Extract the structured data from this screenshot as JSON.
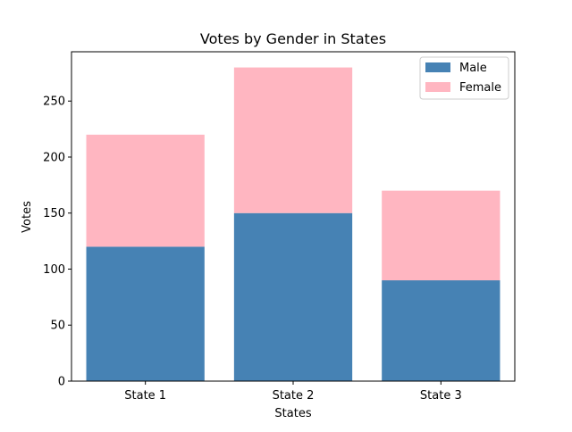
{
  "chart_data": {
    "type": "bar",
    "stacked": true,
    "title": "Votes by Gender in States",
    "xlabel": "States",
    "ylabel": "Votes",
    "categories": [
      "State 1",
      "State 2",
      "State 3"
    ],
    "series": [
      {
        "name": "Male",
        "values": [
          120,
          150,
          90
        ],
        "color": "#4682b4"
      },
      {
        "name": "Female",
        "values": [
          100,
          130,
          80
        ],
        "color": "#ffb6c1"
      }
    ],
    "ylim": [
      0,
      294
    ],
    "yticks": [
      0,
      50,
      100,
      150,
      200,
      250
    ],
    "grid": false,
    "legend_position": "upper right"
  }
}
